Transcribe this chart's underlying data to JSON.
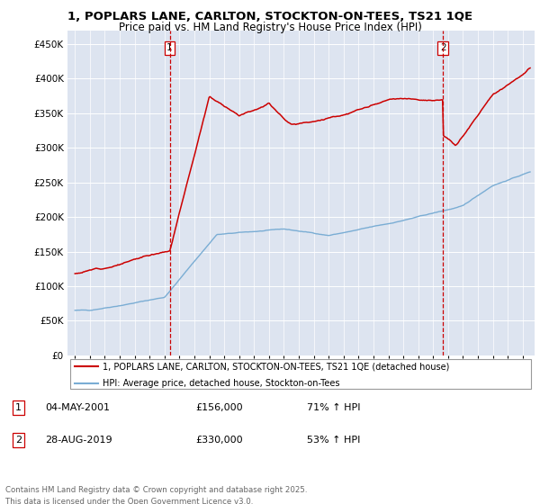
{
  "title_line1": "1, POPLARS LANE, CARLTON, STOCKTON-ON-TEES, TS21 1QE",
  "title_line2": "Price paid vs. HM Land Registry's House Price Index (HPI)",
  "ylabel_ticks": [
    "£0",
    "£50K",
    "£100K",
    "£150K",
    "£200K",
    "£250K",
    "£300K",
    "£350K",
    "£400K",
    "£450K"
  ],
  "ytick_vals": [
    0,
    50000,
    100000,
    150000,
    200000,
    250000,
    300000,
    350000,
    400000,
    450000
  ],
  "xlim": [
    1994.5,
    2025.8
  ],
  "ylim": [
    0,
    470000
  ],
  "sale1_x": 2001.35,
  "sale2_x": 2019.66,
  "legend_red": "1, POPLARS LANE, CARLTON, STOCKTON-ON-TEES, TS21 1QE (detached house)",
  "legend_blue": "HPI: Average price, detached house, Stockton-on-Tees",
  "footer": "Contains HM Land Registry data © Crown copyright and database right 2025.\nThis data is licensed under the Open Government Licence v3.0.",
  "red_color": "#cc0000",
  "blue_color": "#7aadd4",
  "plot_bg": "#dde4f0",
  "grid_color": "#ffffff"
}
